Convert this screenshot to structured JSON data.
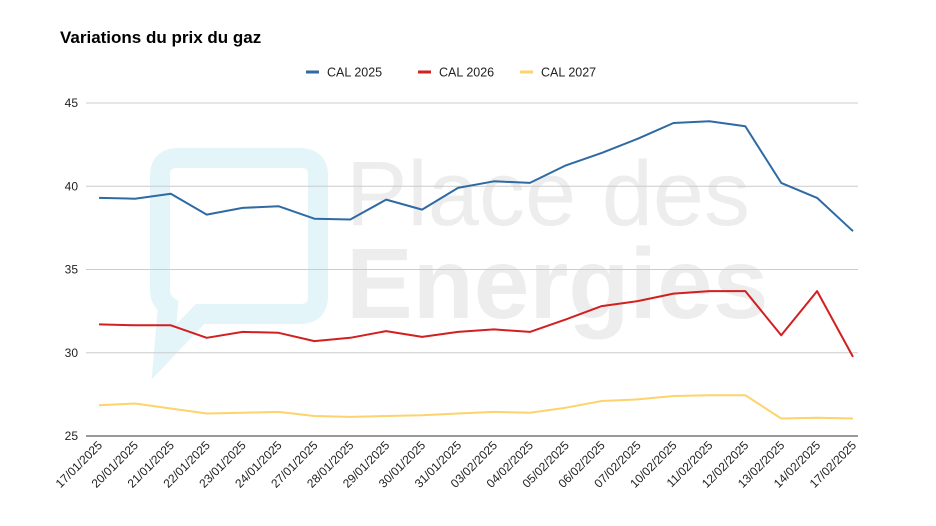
{
  "chart_data": {
    "type": "line",
    "title": "Variations du prix du gaz",
    "categories": [
      "17/01/2025",
      "20/01/2025",
      "21/01/2025",
      "22/01/2025",
      "23/01/2025",
      "24/01/2025",
      "27/01/2025",
      "28/01/2025",
      "29/01/2025",
      "30/01/2025",
      "31/01/2025",
      "03/02/2025",
      "04/02/2025",
      "05/02/2025",
      "06/02/2025",
      "07/02/2025",
      "10/02/2025",
      "11/02/2025",
      "12/02/2025",
      "13/02/2025",
      "14/02/2025",
      "17/02/2025"
    ],
    "series": [
      {
        "name": "CAL 2025",
        "color": "#2f6aa3",
        "values": [
          39.3,
          39.25,
          39.55,
          38.3,
          38.7,
          38.8,
          38.05,
          38.0,
          39.2,
          38.6,
          39.9,
          40.3,
          40.2,
          41.25,
          42.0,
          42.85,
          43.8,
          43.9,
          43.6,
          40.2,
          39.3,
          37.3
        ]
      },
      {
        "name": "CAL 2026",
        "color": "#d21f1f",
        "values": [
          31.7,
          31.65,
          31.65,
          30.9,
          31.25,
          31.2,
          30.7,
          30.9,
          31.3,
          30.95,
          31.25,
          31.4,
          31.25,
          32.0,
          32.8,
          33.1,
          33.55,
          33.7,
          33.7,
          31.05,
          33.7,
          29.75
        ]
      },
      {
        "name": "CAL 2027",
        "color": "#fcd36c",
        "values": [
          26.85,
          26.95,
          26.65,
          26.35,
          26.4,
          26.45,
          26.2,
          26.15,
          26.2,
          26.25,
          26.35,
          26.45,
          26.4,
          26.7,
          27.1,
          27.2,
          27.4,
          27.45,
          27.45,
          26.05,
          26.1,
          26.05
        ]
      }
    ],
    "yticks": [
      25,
      30,
      35,
      40,
      45
    ],
    "ylim": [
      25,
      45
    ],
    "legend_position": "top",
    "grid": true
  },
  "watermark": {
    "line1": "Place des",
    "line2": "Energies",
    "color": "#7fd3dd"
  }
}
